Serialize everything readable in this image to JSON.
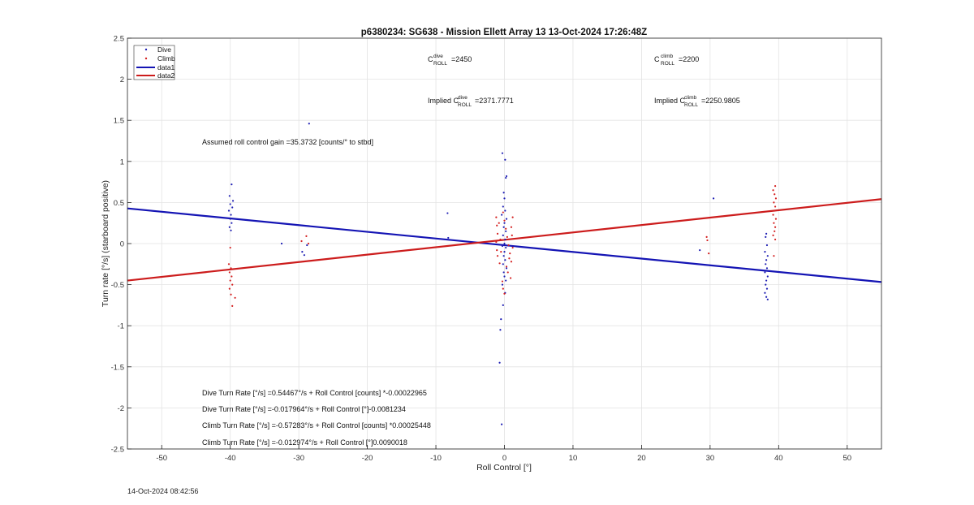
{
  "chart_data": {
    "type": "scatter",
    "title": "p6380234: SG638 - Mission Ellett Array 13 13-Oct-2024 17:26:48Z",
    "xlabel": "Roll Control [°]",
    "ylabel": "Turn rate [°/s] (starboard positive)",
    "xlim": [
      -55,
      55
    ],
    "ylim": [
      -2.5,
      2.5
    ],
    "x_ticks": [
      "-50",
      "-40",
      "-30",
      "-20",
      "-10",
      "0",
      "10",
      "20",
      "30",
      "40",
      "50"
    ],
    "y_ticks": [
      "2.5",
      "2",
      "1.5",
      "1",
      "0.5",
      "0",
      "-0.5",
      "-1",
      "-1.5",
      "-2",
      "-2.5"
    ],
    "grid": true,
    "legend_position": "top-left",
    "series": [
      {
        "name": "Dive",
        "kind": "points",
        "color": "#1f1fb4",
        "points": [
          [
            -39.8,
            0.72
          ],
          [
            -40.1,
            0.58
          ],
          [
            -39.6,
            0.52
          ],
          [
            -40.0,
            0.48
          ],
          [
            -39.7,
            0.44
          ],
          [
            -40.2,
            0.4
          ],
          [
            -39.9,
            0.35
          ],
          [
            -40.0,
            0.3
          ],
          [
            -39.8,
            0.25
          ],
          [
            -40.1,
            0.2
          ],
          [
            -39.9,
            0.16
          ],
          [
            -28.5,
            1.46
          ],
          [
            -32.5,
            0.0
          ],
          [
            -29.5,
            -0.1
          ],
          [
            -29.2,
            -0.14
          ],
          [
            -28.8,
            -0.02
          ],
          [
            -8.3,
            0.37
          ],
          [
            -8.2,
            0.07
          ],
          [
            -0.3,
            1.1
          ],
          [
            0.1,
            1.02
          ],
          [
            0.3,
            0.82
          ],
          [
            0.2,
            0.8
          ],
          [
            -0.1,
            0.62
          ],
          [
            0.0,
            0.55
          ],
          [
            -0.2,
            0.45
          ],
          [
            0.1,
            0.4
          ],
          [
            -0.4,
            0.35
          ],
          [
            0.3,
            0.3
          ],
          [
            0.0,
            0.25
          ],
          [
            -0.1,
            0.2
          ],
          [
            0.2,
            0.15
          ],
          [
            -0.2,
            0.1
          ],
          [
            0.1,
            0.05
          ],
          [
            0.0,
            0.0
          ],
          [
            -0.3,
            -0.03
          ],
          [
            0.2,
            -0.05
          ],
          [
            0.0,
            -0.1
          ],
          [
            -0.1,
            -0.15
          ],
          [
            0.1,
            -0.2
          ],
          [
            -0.2,
            -0.25
          ],
          [
            0.3,
            -0.3
          ],
          [
            -0.1,
            -0.35
          ],
          [
            0.0,
            -0.4
          ],
          [
            0.2,
            -0.45
          ],
          [
            -0.3,
            -0.5
          ],
          [
            0.1,
            -0.6
          ],
          [
            -0.2,
            -0.75
          ],
          [
            -0.5,
            -0.92
          ],
          [
            -0.6,
            -1.05
          ],
          [
            -0.7,
            -1.45
          ],
          [
            -0.4,
            -2.2
          ],
          [
            30.5,
            0.55
          ],
          [
            28.5,
            -0.08
          ],
          [
            38.2,
            0.12
          ],
          [
            38.1,
            0.08
          ],
          [
            38.3,
            -0.02
          ],
          [
            38.0,
            -0.1
          ],
          [
            38.4,
            -0.15
          ],
          [
            38.2,
            -0.2
          ],
          [
            38.1,
            -0.25
          ],
          [
            38.3,
            -0.3
          ],
          [
            38.0,
            -0.35
          ],
          [
            38.4,
            -0.4
          ],
          [
            38.2,
            -0.45
          ],
          [
            38.1,
            -0.5
          ],
          [
            38.3,
            -0.55
          ],
          [
            38.0,
            -0.6
          ],
          [
            38.2,
            -0.65
          ],
          [
            38.4,
            -0.68
          ]
        ]
      },
      {
        "name": "Climb",
        "kind": "points",
        "color": "#d42020",
        "points": [
          [
            -40.0,
            -0.05
          ],
          [
            -40.2,
            -0.25
          ],
          [
            -39.9,
            -0.3
          ],
          [
            -40.1,
            -0.35
          ],
          [
            -39.8,
            -0.4
          ],
          [
            -40.0,
            -0.45
          ],
          [
            -39.7,
            -0.5
          ],
          [
            -40.1,
            -0.55
          ],
          [
            -39.9,
            -0.62
          ],
          [
            -39.3,
            -0.66
          ],
          [
            -39.7,
            -0.76
          ],
          [
            -28.9,
            0.09
          ],
          [
            -29.6,
            0.03
          ],
          [
            -28.6,
            0.0
          ],
          [
            -1.2,
            0.32
          ],
          [
            -1.1,
            0.22
          ],
          [
            -1.0,
            0.12
          ],
          [
            -1.2,
            0.02
          ],
          [
            -1.1,
            -0.08
          ],
          [
            -1.0,
            -0.15
          ],
          [
            -0.8,
            0.25
          ],
          [
            -0.6,
            0.05
          ],
          [
            -0.5,
            -0.1
          ],
          [
            -0.2,
            0.38
          ],
          [
            0.0,
            0.28
          ],
          [
            0.2,
            0.18
          ],
          [
            0.4,
            0.08
          ],
          [
            0.6,
            -0.02
          ],
          [
            0.8,
            -0.12
          ],
          [
            1.0,
            0.2
          ],
          [
            1.2,
            0.32
          ],
          [
            1.1,
            0.1
          ],
          [
            1.0,
            -0.22
          ],
          [
            0.3,
            -0.28
          ],
          [
            0.5,
            -0.35
          ],
          [
            0.9,
            -0.42
          ],
          [
            -0.3,
            -0.46
          ],
          [
            -0.2,
            -0.55
          ],
          [
            0.0,
            -0.61
          ],
          [
            0.7,
            -0.18
          ],
          [
            -0.7,
            -0.24
          ],
          [
            1.2,
            -0.05
          ],
          [
            29.5,
            0.08
          ],
          [
            29.6,
            0.04
          ],
          [
            29.8,
            -0.12
          ],
          [
            39.5,
            0.7
          ],
          [
            39.2,
            0.65
          ],
          [
            39.4,
            0.6
          ],
          [
            39.6,
            0.55
          ],
          [
            39.3,
            0.5
          ],
          [
            39.5,
            0.45
          ],
          [
            39.4,
            0.4
          ],
          [
            39.2,
            0.35
          ],
          [
            39.6,
            0.3
          ],
          [
            39.3,
            0.25
          ],
          [
            39.5,
            0.2
          ],
          [
            39.4,
            0.15
          ],
          [
            39.2,
            0.1
          ],
          [
            39.5,
            0.05
          ],
          [
            39.3,
            -0.15
          ]
        ]
      },
      {
        "name": "data1",
        "kind": "line",
        "color": "#1414b4",
        "x": [
          -55,
          55
        ],
        "y": [
          0.428,
          -0.468
        ]
      },
      {
        "name": "data2",
        "kind": "line",
        "color": "#cc1c1c",
        "x": [
          -55,
          55
        ],
        "y": [
          -0.45,
          0.541
        ]
      }
    ],
    "annotations": {
      "c_dive": {
        "main": "C",
        "sup": "dive",
        "sub": "ROLL",
        "value": "=2450"
      },
      "c_climb": {
        "main": "C",
        "sup": "climb",
        "sub": "ROLL",
        "value": "=2200"
      },
      "implied_dive": {
        "main": "Implied C",
        "sup": "dive",
        "sub": "ROLL",
        "value": "=2371.7771"
      },
      "implied_climb": {
        "main": "Implied C",
        "sup": "climb",
        "sub": "ROLL",
        "value": "=2250.9805"
      },
      "gain": "Assumed roll control gain =35.3732 [counts/° to stbd]",
      "eq1": "Dive Turn Rate [°/s] =0.54467°/s + Roll Control [counts] *-0.00022965",
      "eq2": "Dive Turn Rate [°/s] =-0.017964°/s + Roll Control [°]-0.0081234",
      "eq3": "Climb Turn Rate [°/s] =-0.57283°/s + Roll Control [counts] *0.00025448",
      "eq4": "Climb Turn Rate [°/s] =-0.012974°/s + Roll Control [°]0.0090018"
    }
  },
  "footer": {
    "timestamp": "14-Oct-2024 08:42:56"
  }
}
